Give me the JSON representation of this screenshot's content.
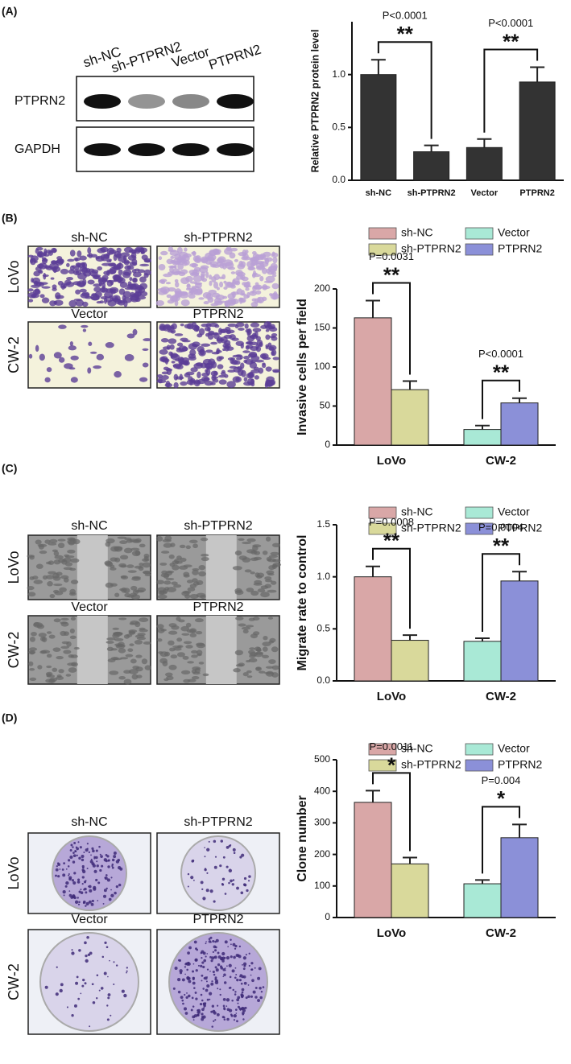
{
  "figure": {
    "panel_labels": [
      "(A)",
      "(B)",
      "(C)",
      "(D)"
    ],
    "blot": {
      "lanes": [
        "sh-NC",
        "sh-PTPRN2",
        "Vector",
        "PTPRN2"
      ],
      "rows": [
        "PTPRN2",
        "GAPDH"
      ]
    },
    "micrographs": [
      {
        "top": [
          "sh-NC",
          "sh-PTPRN2"
        ],
        "bottom": [
          "Vector",
          "PTPRN2"
        ],
        "rows": [
          "LoVo",
          "CW-2"
        ]
      },
      {
        "top": [
          "sh-NC",
          "sh-PTPRN2"
        ],
        "bottom": [
          "Vector",
          "PTPRN2"
        ],
        "rows": [
          "LoVo",
          "CW-2"
        ]
      },
      {
        "top": [
          "sh-NC",
          "sh-PTPRN2"
        ],
        "bottom": [
          "Vector",
          "PTPRN2"
        ],
        "rows": [
          "LoVo",
          "CW-2"
        ]
      }
    ]
  },
  "chart_data": [
    {
      "type": "bar",
      "ylabel": "Relative PTPRN2 protein level",
      "categories": [
        "sh-NC",
        "sh-PTPRN2",
        "Vector",
        "PTPRN2"
      ],
      "values": [
        1.0,
        0.27,
        0.31,
        0.93
      ],
      "errors": [
        0.14,
        0.06,
        0.08,
        0.14
      ],
      "color": "#333333",
      "ylim": [
        0,
        1.5
      ],
      "yticks": [
        {
          "value": 0,
          "label": "0.0"
        },
        {
          "value": 0.5,
          "label": "0.5"
        },
        {
          "value": 1,
          "label": "1.0"
        }
      ],
      "annotations": [
        {
          "label": "P<0.0001",
          "stars": "**"
        },
        {
          "label": "P<0.0001",
          "stars": "**"
        }
      ]
    },
    {
      "type": "grouped_bar",
      "ylabel": "Invasive cells per field",
      "categories": [
        "LoVo",
        "CW-2"
      ],
      "series": [
        {
          "name": "sh-NC",
          "color": "#d9a7a7",
          "values": [
            163,
            null
          ],
          "errors": [
            22,
            null
          ]
        },
        {
          "name": "sh-PTPRN2",
          "color": "#d9d99b",
          "values": [
            71,
            null
          ],
          "errors": [
            11,
            null
          ]
        },
        {
          "name": "Vector",
          "color": "#a9e9d6",
          "values": [
            null,
            20
          ],
          "errors": [
            null,
            5
          ]
        },
        {
          "name": "PTPRN2",
          "color": "#8b90d8",
          "values": [
            null,
            54
          ],
          "errors": [
            null,
            6
          ]
        }
      ],
      "ylim": [
        0,
        200
      ],
      "yticks": [
        0,
        50,
        100,
        150,
        200
      ],
      "annotations": [
        {
          "label": "P=0.0031",
          "stars": "**"
        },
        {
          "label": "P<0.0001",
          "stars": "**"
        }
      ]
    },
    {
      "type": "grouped_bar",
      "ylabel": "Migrate rate to control",
      "categories": [
        "LoVo",
        "CW-2"
      ],
      "series": [
        {
          "name": "sh-NC",
          "color": "#d9a7a7",
          "values": [
            1.0,
            null
          ],
          "errors": [
            0.1,
            null
          ]
        },
        {
          "name": "sh-PTPRN2",
          "color": "#d9d99b",
          "values": [
            0.39,
            null
          ],
          "errors": [
            0.05,
            null
          ]
        },
        {
          "name": "Vector",
          "color": "#a9e9d6",
          "values": [
            null,
            0.38
          ],
          "errors": [
            null,
            0.03
          ]
        },
        {
          "name": "PTPRN2",
          "color": "#8b90d8",
          "values": [
            null,
            0.96
          ],
          "errors": [
            null,
            0.09
          ]
        }
      ],
      "ylim": [
        0,
        1.5
      ],
      "yticks": [
        {
          "value": 0,
          "label": "0.0"
        },
        {
          "value": 0.5,
          "label": "0.5"
        },
        {
          "value": 1,
          "label": "1.0"
        },
        1.5
      ],
      "annotations": [
        {
          "label": "P=0.0008",
          "stars": "**"
        },
        {
          "label": "P=0.0004",
          "stars": "**"
        }
      ]
    },
    {
      "type": "grouped_bar",
      "ylabel": "Clone number",
      "categories": [
        "LoVo",
        "CW-2"
      ],
      "series": [
        {
          "name": "sh-NC",
          "color": "#d9a7a7",
          "values": [
            365,
            null
          ],
          "errors": [
            37,
            null
          ]
        },
        {
          "name": "sh-PTPRN2",
          "color": "#d9d99b",
          "values": [
            170,
            null
          ],
          "errors": [
            20,
            null
          ]
        },
        {
          "name": "Vector",
          "color": "#a9e9d6",
          "values": [
            null,
            107
          ],
          "errors": [
            null,
            12
          ]
        },
        {
          "name": "PTPRN2",
          "color": "#8b90d8",
          "values": [
            null,
            253
          ],
          "errors": [
            null,
            42
          ]
        }
      ],
      "ylim": [
        0,
        500
      ],
      "yticks": [
        0,
        100,
        200,
        300,
        400,
        500
      ],
      "annotations": [
        {
          "label": "P=0.0011",
          "stars": "*"
        },
        {
          "label": "P=0.004",
          "stars": "*"
        }
      ]
    }
  ]
}
